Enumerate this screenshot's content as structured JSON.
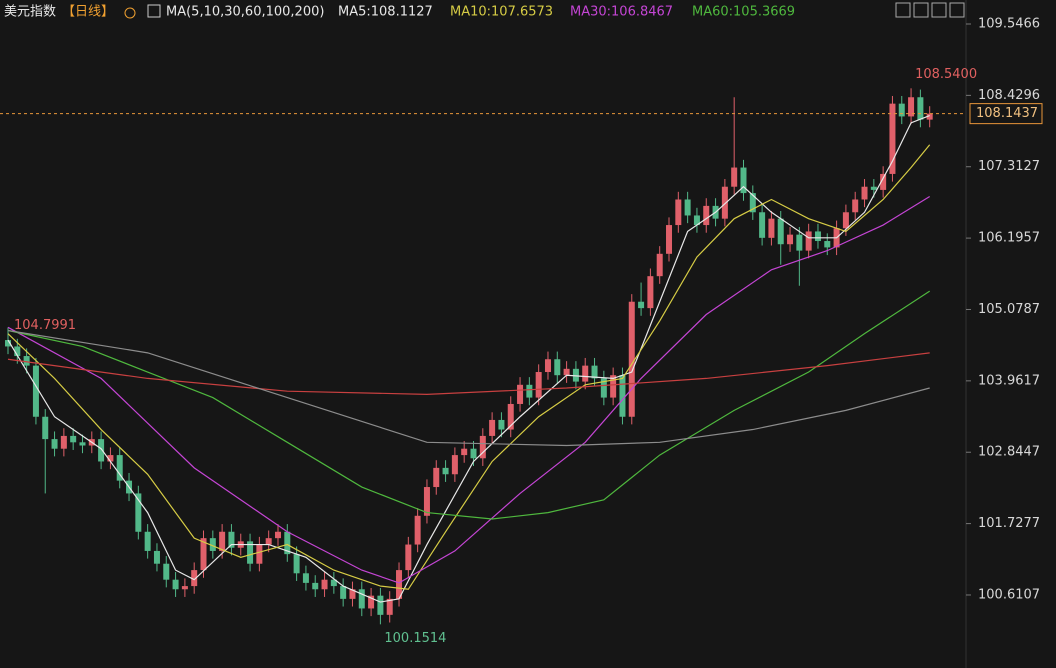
{
  "chart_data": {
    "type": "candlestick",
    "title": "美元指数",
    "period": "【日线】",
    "indicator": "MA(5,10,30,60,100,200)",
    "up_color": "#e0606a",
    "down_color": "#52b889",
    "ylim": [
      99.468,
      109.922
    ],
    "yticks": [
      109.5466,
      108.4296,
      107.3127,
      106.1957,
      105.0787,
      103.9617,
      102.8447,
      101.7277,
      100.6107
    ],
    "open": [
      104.6,
      104.5,
      104.35,
      104.2,
      103.4,
      103.05,
      102.9,
      103.1,
      103.0,
      102.95,
      103.05,
      102.7,
      102.8,
      102.4,
      102.2,
      101.6,
      101.3,
      101.1,
      100.85,
      100.7,
      100.75,
      101.0,
      101.5,
      101.3,
      101.6,
      101.35,
      101.45,
      101.1,
      101.4,
      101.5,
      101.6,
      101.25,
      100.95,
      100.8,
      100.7,
      100.85,
      100.75,
      100.55,
      100.7,
      100.4,
      100.6,
      100.3,
      100.55,
      101.0,
      101.4,
      101.85,
      102.3,
      102.6,
      102.5,
      102.8,
      102.9,
      102.75,
      103.1,
      103.35,
      103.2,
      103.6,
      103.9,
      103.7,
      104.1,
      104.3,
      104.05,
      104.15,
      103.95,
      104.2,
      104.0,
      103.7,
      104.05,
      103.4,
      105.2,
      105.1,
      105.6,
      105.95,
      106.4,
      106.8,
      106.55,
      106.4,
      106.7,
      106.5,
      107.0,
      107.3,
      106.9,
      106.6,
      106.2,
      106.5,
      106.1,
      106.25,
      106.0,
      106.3,
      106.15,
      106.05,
      106.35,
      106.6,
      106.8,
      107.0,
      106.95,
      107.2,
      108.3,
      108.1,
      108.4,
      108.05
    ],
    "high": [
      104.7991,
      104.62,
      104.47,
      104.32,
      103.52,
      103.17,
      103.22,
      103.22,
      103.12,
      103.17,
      103.17,
      102.92,
      102.92,
      102.52,
      102.32,
      101.72,
      101.42,
      101.22,
      100.97,
      100.87,
      101.12,
      101.62,
      101.62,
      101.72,
      101.72,
      101.57,
      101.57,
      101.52,
      101.62,
      101.72,
      101.72,
      101.37,
      101.07,
      100.92,
      100.97,
      100.97,
      100.87,
      100.82,
      100.82,
      100.72,
      100.72,
      100.67,
      101.12,
      101.52,
      101.97,
      102.42,
      102.72,
      102.72,
      102.92,
      103.02,
      103.02,
      103.22,
      103.47,
      103.47,
      103.72,
      104.02,
      104.02,
      104.22,
      104.42,
      104.42,
      104.27,
      104.27,
      104.32,
      104.32,
      104.12,
      104.17,
      104.17,
      105.32,
      105.5,
      105.72,
      106.07,
      106.52,
      106.92,
      106.92,
      106.67,
      106.82,
      106.82,
      107.12,
      108.4,
      107.42,
      107.02,
      106.72,
      106.62,
      106.62,
      106.37,
      106.37,
      106.42,
      106.42,
      106.27,
      106.47,
      106.72,
      106.92,
      107.12,
      107.12,
      107.32,
      108.42,
      108.42,
      108.54,
      108.52,
      108.26
    ],
    "low": [
      104.38,
      104.23,
      104.08,
      103.28,
      102.2,
      102.78,
      102.78,
      102.88,
      102.83,
      102.83,
      102.58,
      102.58,
      102.28,
      102.08,
      101.48,
      101.18,
      100.98,
      100.73,
      100.58,
      100.58,
      100.63,
      100.88,
      101.18,
      101.18,
      101.23,
      101.23,
      100.98,
      100.98,
      101.28,
      101.38,
      101.13,
      100.83,
      100.68,
      100.58,
      100.58,
      100.63,
      100.43,
      100.43,
      100.28,
      100.28,
      100.1514,
      100.18,
      100.43,
      100.88,
      101.28,
      101.73,
      102.18,
      102.38,
      102.38,
      102.68,
      102.63,
      102.63,
      102.98,
      103.08,
      103.08,
      103.48,
      103.58,
      103.58,
      103.98,
      103.93,
      103.93,
      103.83,
      103.83,
      103.88,
      103.58,
      103.58,
      103.28,
      103.28,
      104.98,
      104.98,
      105.48,
      105.83,
      106.28,
      106.43,
      106.28,
      106.28,
      106.38,
      106.38,
      106.88,
      106.78,
      106.48,
      106.08,
      106.08,
      105.78,
      105.98,
      105.45,
      105.88,
      106.03,
      105.93,
      105.93,
      106.23,
      106.48,
      106.68,
      106.83,
      106.83,
      107.08,
      107.98,
      107.98,
      107.93,
      107.93
    ],
    "close": [
      104.5,
      104.35,
      104.2,
      103.4,
      103.05,
      102.9,
      103.1,
      103.0,
      102.95,
      103.05,
      102.7,
      102.8,
      102.4,
      102.2,
      101.6,
      101.3,
      101.1,
      100.85,
      100.7,
      100.75,
      101.0,
      101.5,
      101.3,
      101.6,
      101.35,
      101.45,
      101.1,
      101.4,
      101.5,
      101.6,
      101.25,
      100.95,
      100.8,
      100.7,
      100.85,
      100.75,
      100.55,
      100.7,
      100.4,
      100.6,
      100.3,
      100.55,
      101.0,
      101.4,
      101.85,
      102.3,
      102.6,
      102.5,
      102.8,
      102.9,
      102.75,
      103.1,
      103.35,
      103.2,
      103.6,
      103.9,
      103.7,
      104.1,
      104.3,
      104.05,
      104.15,
      103.95,
      104.2,
      104.0,
      103.7,
      104.05,
      103.4,
      105.2,
      105.1,
      105.6,
      105.95,
      106.4,
      106.8,
      106.55,
      106.4,
      106.7,
      106.5,
      107.0,
      107.3,
      106.9,
      106.6,
      106.2,
      106.5,
      106.1,
      106.25,
      106.0,
      106.3,
      106.15,
      106.05,
      106.35,
      106.6,
      106.8,
      107.0,
      106.95,
      107.2,
      108.3,
      108.1,
      108.4,
      108.05,
      108.1437
    ],
    "start_label": "104.7991",
    "high_label": "108.5400",
    "low_label": "100.1514",
    "last": {
      "value": 108.1437,
      "label": "108.1437"
    },
    "series": [
      {
        "name": "MA5:108.1127",
        "color": "#e8e8e8",
        "x": [
          0,
          5,
          10,
          15,
          18,
          20,
          24,
          28,
          32,
          36,
          40,
          42,
          45,
          50,
          55,
          60,
          65,
          67,
          70,
          73,
          76,
          79,
          82,
          86,
          89,
          92,
          95,
          97,
          99
        ],
        "values": [
          104.6,
          103.4,
          102.9,
          101.9,
          101.0,
          100.85,
          101.4,
          101.4,
          101.2,
          100.75,
          100.5,
          100.55,
          101.4,
          102.7,
          103.4,
          104.05,
          104.0,
          104.1,
          105.2,
          106.3,
          106.6,
          107.0,
          106.6,
          106.2,
          106.2,
          106.6,
          107.4,
          108.0,
          108.1127
        ]
      },
      {
        "name": "MA10:107.6573",
        "color": "#d6cc45",
        "x": [
          0,
          5,
          10,
          15,
          20,
          25,
          30,
          35,
          40,
          43,
          47,
          52,
          57,
          62,
          66,
          70,
          74,
          78,
          82,
          86,
          90,
          94,
          97,
          99
        ],
        "values": [
          104.7,
          104.0,
          103.2,
          102.5,
          101.5,
          101.2,
          101.4,
          101.0,
          100.75,
          100.7,
          101.6,
          102.7,
          103.4,
          103.9,
          104.0,
          104.9,
          105.9,
          106.5,
          106.8,
          106.5,
          106.3,
          106.8,
          107.3,
          107.6573
        ]
      },
      {
        "name": "MA30:106.8467",
        "color": "#c445d4",
        "x": [
          0,
          10,
          20,
          30,
          38,
          42,
          48,
          55,
          62,
          68,
          75,
          82,
          88,
          94,
          99
        ],
        "values": [
          104.8,
          104.0,
          102.6,
          101.6,
          101.0,
          100.8,
          101.3,
          102.2,
          103.0,
          104.0,
          105.0,
          105.7,
          106.0,
          106.4,
          106.8467
        ]
      },
      {
        "name": "MA60:105.3669",
        "color": "#4fb83e",
        "x": [
          0,
          8,
          15,
          22,
          30,
          38,
          45,
          52,
          58,
          64,
          70,
          78,
          86,
          92,
          99
        ],
        "values": [
          104.75,
          104.5,
          104.1,
          103.7,
          103.0,
          102.3,
          101.9,
          101.8,
          101.9,
          102.1,
          102.8,
          103.5,
          104.1,
          104.7,
          105.3669
        ]
      },
      {
        "color": "#c84040",
        "x": [
          0,
          15,
          30,
          45,
          60,
          75,
          88,
          99
        ],
        "values": [
          104.3,
          104.0,
          103.8,
          103.75,
          103.85,
          104.0,
          104.2,
          104.4
        ]
      },
      {
        "color": "#8c8c8c",
        "x": [
          0,
          15,
          30,
          45,
          60,
          70,
          80,
          90,
          99
        ],
        "values": [
          104.75,
          104.4,
          103.7,
          103.0,
          102.95,
          103.0,
          103.2,
          103.5,
          103.85
        ]
      }
    ]
  }
}
